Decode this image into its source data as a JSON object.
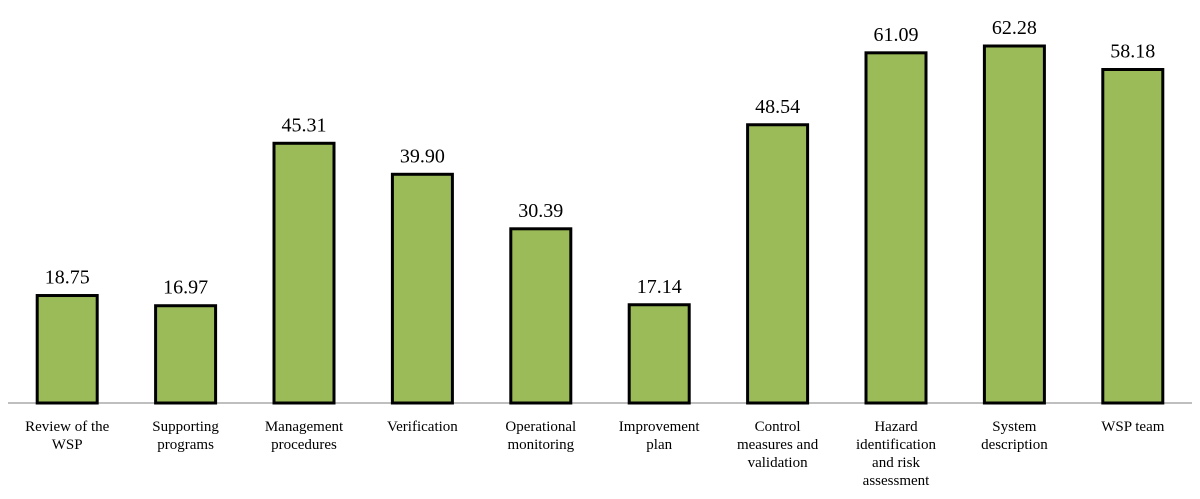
{
  "chart_data": {
    "type": "bar",
    "categories": [
      [
        "Review of the",
        "WSP"
      ],
      [
        "Supporting",
        "programs"
      ],
      [
        "Management",
        "procedures"
      ],
      [
        "Verification"
      ],
      [
        "Operational",
        "monitoring"
      ],
      [
        "Improvement",
        "plan"
      ],
      [
        "Control",
        "measures and",
        "validation"
      ],
      [
        "Hazard",
        "identification",
        "and risk",
        "assessment"
      ],
      [
        "System",
        "description"
      ],
      [
        "WSP team"
      ]
    ],
    "values": [
      18.75,
      16.97,
      45.31,
      39.9,
      30.39,
      17.14,
      48.54,
      61.09,
      62.28,
      58.18
    ],
    "value_labels": [
      "18.75",
      "16.97",
      "45.31",
      "39.90",
      "30.39",
      "17.14",
      "48.54",
      "61.09",
      "62.28",
      "58.18"
    ],
    "title": "",
    "xlabel": "",
    "ylabel": "",
    "ylim": [
      0,
      62.28
    ],
    "grid": false,
    "bar_color": "#9bbb59",
    "bar_outline_color": "#000000"
  }
}
